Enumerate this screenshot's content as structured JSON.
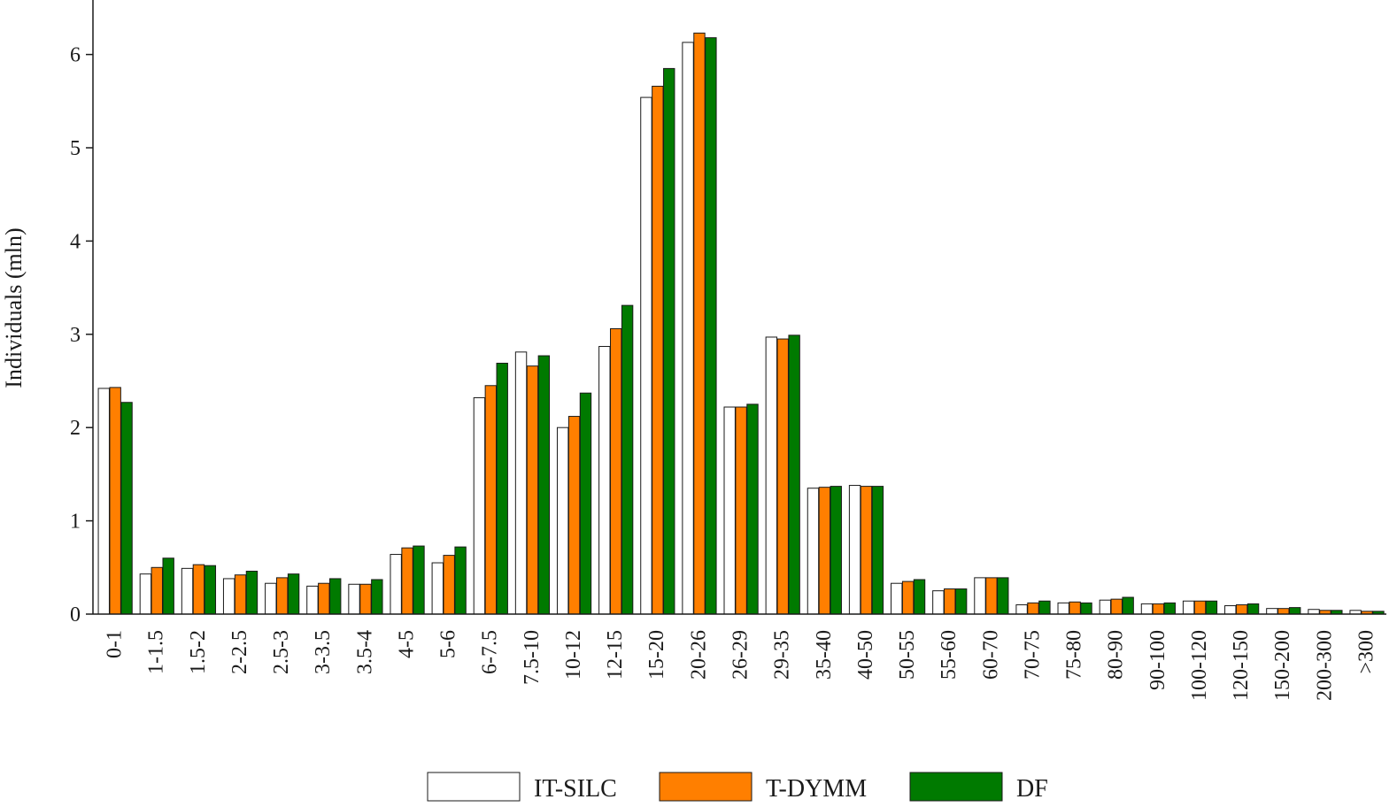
{
  "chart_data": {
    "type": "bar",
    "title": "",
    "xlabel": "",
    "ylabel": "Individuals (mln)",
    "ylim": [
      0,
      6.3
    ],
    "yticks": [
      "0",
      "1",
      "2",
      "3",
      "4",
      "5",
      "6"
    ],
    "grid": false,
    "legend_position": "bottom",
    "categories": [
      "0-1",
      "1-1.5",
      "1.5-2",
      "2-2.5",
      "2.5-3",
      "3-3.5",
      "3.5-4",
      "4-5",
      "5-6",
      "6-7.5",
      "7.5-10",
      "10-12",
      "12-15",
      "15-20",
      "20-26",
      "26-29",
      "29-35",
      "35-40",
      "40-50",
      "50-55",
      "55-60",
      "60-70",
      "70-75",
      "75-80",
      "80-90",
      "90-100",
      "100-120",
      "120-150",
      "150-200",
      "200-300",
      ">300"
    ],
    "series": [
      {
        "name": "IT-SILC",
        "color": "#ffffff",
        "values": [
          2.42,
          0.43,
          0.49,
          0.38,
          0.33,
          0.3,
          0.32,
          0.64,
          0.55,
          2.32,
          2.81,
          2.0,
          2.87,
          5.54,
          6.13,
          2.22,
          2.97,
          1.35,
          1.38,
          0.33,
          0.25,
          0.39,
          0.1,
          0.12,
          0.15,
          0.11,
          0.14,
          0.09,
          0.06,
          0.05,
          0.04
        ]
      },
      {
        "name": "T-DYMM",
        "color": "#ff7f00",
        "values": [
          2.43,
          0.5,
          0.53,
          0.42,
          0.39,
          0.33,
          0.32,
          0.71,
          0.63,
          2.45,
          2.66,
          2.12,
          3.06,
          5.66,
          6.23,
          2.22,
          2.95,
          1.36,
          1.37,
          0.35,
          0.27,
          0.39,
          0.12,
          0.13,
          0.16,
          0.11,
          0.14,
          0.1,
          0.06,
          0.04,
          0.03
        ]
      },
      {
        "name": "DF",
        "color": "#007a00",
        "values": [
          2.27,
          0.6,
          0.52,
          0.46,
          0.43,
          0.38,
          0.37,
          0.73,
          0.72,
          2.69,
          2.77,
          2.37,
          3.31,
          5.85,
          6.18,
          2.25,
          2.99,
          1.37,
          1.37,
          0.37,
          0.27,
          0.39,
          0.14,
          0.12,
          0.18,
          0.12,
          0.14,
          0.11,
          0.07,
          0.04,
          0.03
        ]
      }
    ]
  }
}
